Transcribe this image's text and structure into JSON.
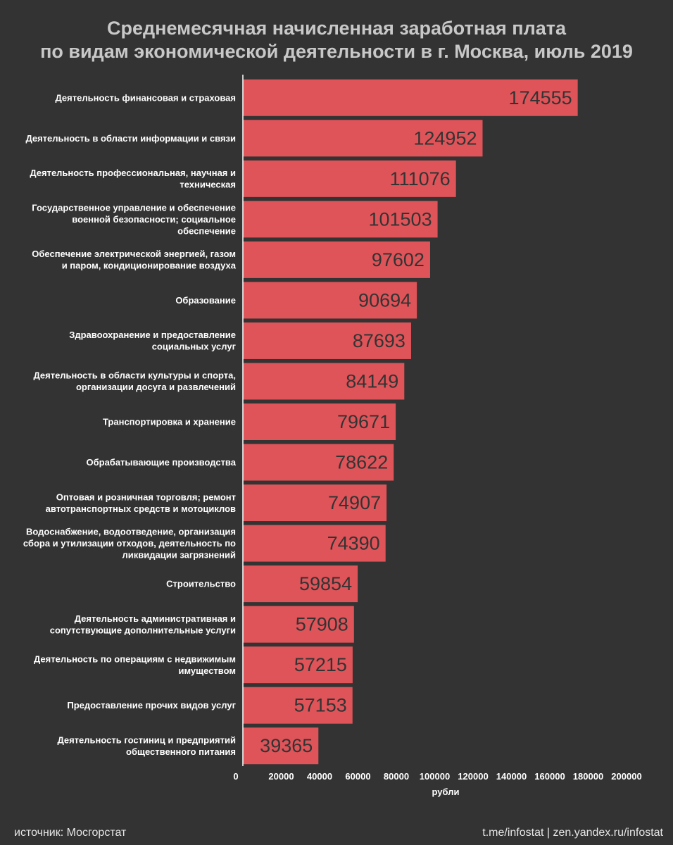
{
  "title_line1": "Среднемесячная начисленная заработная плата",
  "title_line2": "по видам экономической деятельности в г. Москва, июль 2019",
  "colors": {
    "background": "#333333",
    "bar": "#df5459",
    "axis": "#ffffff",
    "value_text": "#333333"
  },
  "footer": {
    "source": "источник: Мосгорстат",
    "links": "t.me/infostat | zen.yandex.ru/infostat"
  },
  "chart_data": {
    "type": "bar",
    "orientation": "horizontal",
    "title": "Среднемесячная начисленная заработная плата по видам экономической деятельности в г. Москва, июль 2019",
    "xlabel": "рубли",
    "xlim": [
      0,
      200000
    ],
    "xticks": [
      0,
      20000,
      40000,
      60000,
      80000,
      100000,
      120000,
      140000,
      160000,
      180000,
      200000
    ],
    "categories": [
      [
        "Деятельность финансовая и страховая"
      ],
      [
        "Деятельность в области информации и связи"
      ],
      [
        "Деятельность профессиональная, научная и",
        "техническая"
      ],
      [
        "Государственное управление и обеспечение",
        "военной безопасности; социальное",
        "обеспечение"
      ],
      [
        "Обеспечение электрической энергией, газом",
        "и паром, кондиционирование воздуха"
      ],
      [
        "Образование"
      ],
      [
        "Здравоохранение и предоставление",
        "социальных услуг"
      ],
      [
        "Деятельность в области культуры и спорта,",
        "организации досуга и развлечений"
      ],
      [
        "Транспортировка и хранение"
      ],
      [
        "Обрабатывающие производства"
      ],
      [
        "Оптовая и розничная торговля; ремонт",
        "автотранспортных средств и мотоциклов"
      ],
      [
        "Водоснабжение, водоотведение, организация",
        "сбора и утилизации отходов, деятельность по",
        "ликвидации загрязнений"
      ],
      [
        "Строительство"
      ],
      [
        "Деятельность административная и",
        "сопутствующие дополнительные услуги"
      ],
      [
        "Деятельность по операциям с недвижимым",
        "имуществом"
      ],
      [
        "Предоставление прочих видов услуг"
      ],
      [
        "Деятельность гостиниц и предприятий",
        "общественного питания"
      ]
    ],
    "values": [
      174555,
      124952,
      111076,
      101503,
      97602,
      90694,
      87693,
      84149,
      79671,
      78622,
      74907,
      74390,
      59854,
      57908,
      57215,
      57153,
      39365
    ]
  }
}
